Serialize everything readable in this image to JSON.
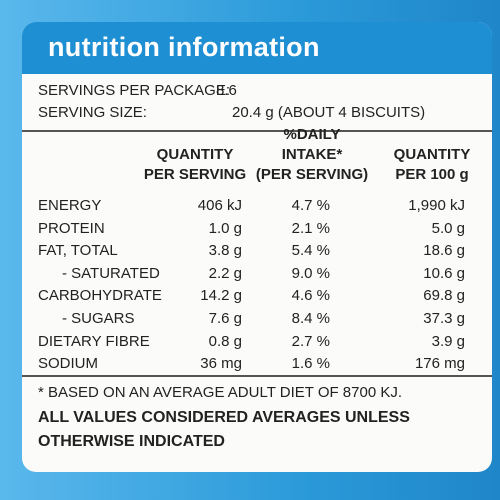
{
  "header": {
    "title": "nutrition information"
  },
  "servings": [
    {
      "label": "SERVINGS PER PACKAGE:",
      "value": "8.6"
    },
    {
      "label": "SERVING SIZE:",
      "value": "20.4 g (ABOUT 4 BISCUITS)"
    }
  ],
  "table": {
    "columns": [
      [
        "QUANTITY",
        "PER SERVING"
      ],
      [
        "%DAILY",
        "INTAKE*",
        "(PER SERVING)"
      ],
      [
        "QUANTITY",
        "PER 100 g"
      ]
    ],
    "rows": [
      [
        "ENERGY",
        "406 kJ",
        "4.7 %",
        "1,990 kJ"
      ],
      [
        "PROTEIN",
        "1.0 g",
        "2.1 %",
        "5.0 g"
      ],
      [
        "FAT, TOTAL",
        "3.8 g",
        "5.4 %",
        "18.6 g"
      ],
      [
        "- SATURATED",
        "2.2 g",
        "9.0 %",
        "10.6 g"
      ],
      [
        "CARBOHYDRATE",
        "14.2 g",
        "4.6 %",
        "69.8 g"
      ],
      [
        "- SUGARS",
        "7.6 g",
        "8.4 %",
        "37.3 g"
      ],
      [
        "DIETARY FIBRE",
        "0.8 g",
        "2.7 %",
        "3.9 g"
      ],
      [
        "SODIUM",
        "36 mg",
        "1.6 %",
        "176 mg"
      ]
    ]
  },
  "footnotes": [
    "* BASED ON AN AVERAGE ADULT DIET OF 8700 KJ.",
    "ALL VALUES CONSIDERED AVERAGES UNLESS OTHERWISE INDICATED"
  ]
}
